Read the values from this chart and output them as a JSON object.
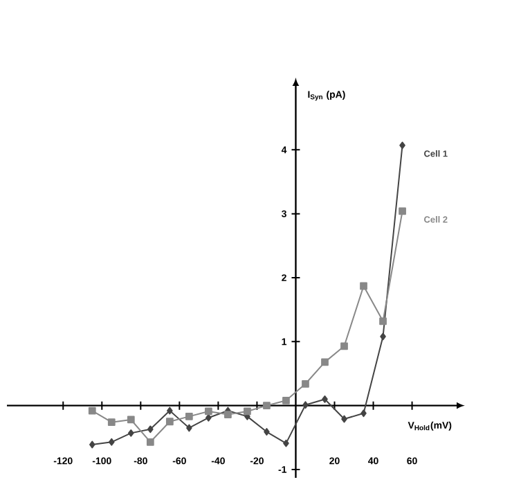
{
  "chart_data": {
    "type": "line",
    "xlabel": "V$_{Hold}$(mV)",
    "ylabel": "I$_{Syn}$ (pA)",
    "x": [
      -105,
      -95,
      -85,
      -75,
      -65,
      -55,
      -45,
      -35,
      -25,
      -15,
      -5,
      5,
      15,
      25,
      35,
      45,
      55
    ],
    "series": [
      {
        "name": "Cell 1",
        "color": "#444444",
        "marker": "diamond",
        "values": [
          -0.61,
          -0.57,
          -0.43,
          -0.37,
          -0.08,
          -0.35,
          -0.19,
          -0.08,
          -0.17,
          -0.41,
          -0.59,
          0.01,
          0.1,
          -0.21,
          -0.12,
          1.08,
          4.07
        ]
      },
      {
        "name": "Cell 2",
        "color": "#888888",
        "marker": "square",
        "values": [
          -0.08,
          -0.26,
          -0.22,
          -0.57,
          -0.25,
          -0.17,
          -0.09,
          -0.14,
          -0.09,
          0.0,
          0.08,
          0.34,
          0.68,
          0.93,
          1.87,
          1.32,
          3.04
        ]
      }
    ],
    "xlim": [
      -149,
      83
    ],
    "ylim": [
      -1.13,
      5.0
    ],
    "xticks": [
      -120,
      -100,
      -80,
      -60,
      -40,
      -20,
      20,
      40,
      60
    ],
    "yticks": [
      -1,
      1,
      2,
      3,
      4
    ]
  }
}
